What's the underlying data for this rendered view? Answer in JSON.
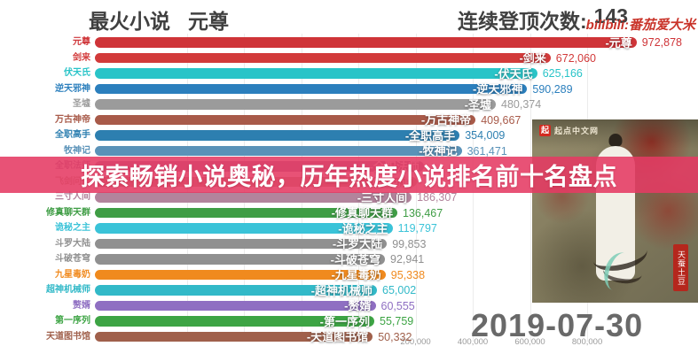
{
  "header": {
    "title_prefix": "最火小说",
    "title_book": "元尊",
    "streak_label": "连续登顶次数:",
    "streak_value": "143",
    "watermark": "bilibili:番茄爱大米"
  },
  "banner": {
    "text": "探索畅销小说奥秘，历年热度小说排名前十名盘点",
    "color": "#e53a63"
  },
  "date_label": "2019-07-30",
  "cover": {
    "site_logo": "起",
    "site_name": "起点中文网",
    "seal_text": "天蚕土豆"
  },
  "chart_data": {
    "type": "bar",
    "orientation": "horizontal",
    "title": "最火小说 元尊",
    "subtitle": "连续登顶次数: 143",
    "date": "2019-07-30",
    "xlabel": "",
    "ylabel": "",
    "x_axis": {
      "tick_values": [
        200000,
        400000,
        600000,
        800000
      ],
      "tick_labels": [
        "200,000",
        "400,000",
        "600,000",
        "800,000"
      ]
    },
    "grid": true,
    "items": [
      {
        "rank": 1,
        "label": "元尊",
        "value": 972878,
        "value_text": "972,878",
        "color": "#cf3438",
        "occluded": false
      },
      {
        "rank": 2,
        "label": "剑来",
        "value": 672060,
        "value_text": "672,060",
        "color": "#d23a3a",
        "occluded": false
      },
      {
        "rank": 3,
        "label": "伏天氏",
        "value": 625166,
        "value_text": "625,166",
        "color": "#29c4c8",
        "occluded": false
      },
      {
        "rank": 4,
        "label": "逆天邪神",
        "value": 590289,
        "value_text": "590,289",
        "color": "#2b7fbd",
        "occluded": false
      },
      {
        "rank": 5,
        "label": "圣墟",
        "value": 480374,
        "value_text": "480,374",
        "color": "#9b9b9b",
        "occluded": false
      },
      {
        "rank": 6,
        "label": "万古神帝",
        "value": 409667,
        "value_text": "409,667",
        "color": "#a85a49",
        "occluded": false
      },
      {
        "rank": 7,
        "label": "全职高手",
        "value": 354009,
        "value_text": "354,009",
        "color": "#2d7fb0",
        "occluded": false
      },
      {
        "rank": 8,
        "label": "牧神记",
        "value": 361471,
        "value_text": "361,471",
        "color": "#5a92b8",
        "occluded": false
      },
      {
        "rank": 9,
        "label": "全职法师",
        "value": 229000,
        "value_text": "",
        "color": "#9a86a6",
        "occluded": true
      },
      {
        "rank": 10,
        "label": "飞剑问道",
        "value": 205000,
        "value_text": "",
        "color": "#b0a08a",
        "occluded": true
      },
      {
        "rank": 11,
        "label": "三寸人间",
        "value": 186307,
        "value_text": "186,307",
        "color": "#b2849c",
        "occluded": false
      },
      {
        "rank": 12,
        "label": "修真聊天群",
        "value": 136467,
        "value_text": "136,467",
        "color": "#3f9d45",
        "occluded": false
      },
      {
        "rank": 13,
        "label": "诡秘之主",
        "value": 119797,
        "value_text": "119,797",
        "color": "#3ac3d8",
        "occluded": false
      },
      {
        "rank": 14,
        "label": "斗罗大陆",
        "value": 99853,
        "value_text": "99,853",
        "color": "#909090",
        "occluded": false
      },
      {
        "rank": 15,
        "label": "斗破苍穹",
        "value": 92941,
        "value_text": "92,941",
        "color": "#909090",
        "occluded": false
      },
      {
        "rank": 16,
        "label": "九星毒奶",
        "value": 95338,
        "value_text": "95,338",
        "color": "#f08a1e",
        "occluded": false
      },
      {
        "rank": 17,
        "label": "超神机械师",
        "value": 65002,
        "value_text": "65,002",
        "color": "#32b9c8",
        "occluded": false
      },
      {
        "rank": 18,
        "label": "赘婿",
        "value": 60555,
        "value_text": "60,555",
        "color": "#8f6fc2",
        "occluded": false
      },
      {
        "rank": 19,
        "label": "第一序列",
        "value": 55759,
        "value_text": "55,759",
        "color": "#3da444",
        "occluded": false
      },
      {
        "rank": 20,
        "label": "天道图书馆",
        "value": 50332,
        "value_text": "50,332",
        "color": "#a0604b",
        "occluded": false
      }
    ]
  }
}
